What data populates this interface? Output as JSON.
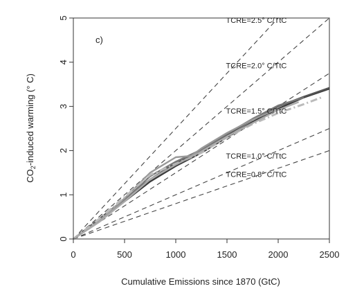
{
  "chart_data": {
    "type": "line",
    "panel_label": "c)",
    "xlabel": "Cumulative Emissions since 1870 (GtC)",
    "ylabel_parts": {
      "pre": "CO",
      "sub": "2",
      "post": "-induced warming (° C)"
    },
    "xlim": [
      0,
      2500
    ],
    "ylim": [
      0,
      5
    ],
    "xticks": [
      0,
      500,
      1000,
      1500,
      2000,
      2500
    ],
    "yticks": [
      0,
      1,
      2,
      3,
      4,
      5
    ],
    "grid": false,
    "reference_lines": [
      {
        "label": "TCRE=2.5° C/TtC",
        "slope": 2.5
      },
      {
        "label": "TCRE=2.0° C/TtC",
        "slope": 2.0
      },
      {
        "label": "TCRE=1.5° C/TtC",
        "slope": 1.5
      },
      {
        "label": "TCRE=1.0° C/TtC",
        "slope": 1.0
      },
      {
        "label": "TCRE=0.8° C/TtC",
        "slope": 0.8
      }
    ],
    "series": [
      {
        "color": "#3a3a3a",
        "style": "solid",
        "x": [
          0,
          250,
          500,
          750,
          1000,
          1250,
          1500,
          1750,
          2000,
          2250,
          2500
        ],
        "y": [
          0,
          0.4,
          0.85,
          1.3,
          1.65,
          1.95,
          2.3,
          2.65,
          2.95,
          3.2,
          3.4
        ]
      },
      {
        "color": "#555555",
        "style": "solid",
        "x": [
          0,
          250,
          500,
          750,
          1000,
          1250,
          1500,
          1750,
          2000,
          2250,
          2500
        ],
        "y": [
          0,
          0.45,
          0.9,
          1.35,
          1.72,
          2.0,
          2.35,
          2.7,
          3.0,
          3.22,
          3.42
        ]
      },
      {
        "color": "#777777",
        "style": "solid",
        "x": [
          0,
          250,
          500,
          750,
          1000,
          1250,
          1500,
          1750,
          2000,
          2250
        ],
        "y": [
          0,
          0.42,
          0.88,
          1.42,
          1.75,
          2.02,
          2.38,
          2.72,
          3.02,
          3.2
        ]
      },
      {
        "color": "#999999",
        "style": "solid",
        "x": [
          0,
          250,
          500,
          750,
          1000,
          1150,
          1250,
          1500,
          1750,
          2000
        ],
        "y": [
          0,
          0.4,
          0.92,
          1.5,
          1.85,
          1.88,
          2.05,
          2.4,
          2.7,
          2.95
        ]
      },
      {
        "color": "#bbbbbb",
        "style": "dashdot",
        "x": [
          0,
          250,
          500,
          750,
          1000,
          1250,
          1500,
          1750,
          2000,
          2250,
          2420
        ],
        "y": [
          0,
          0.45,
          0.95,
          1.45,
          1.7,
          1.95,
          2.3,
          2.6,
          2.85,
          3.05,
          3.2
        ]
      },
      {
        "color": "#aaaaaa",
        "style": "solid",
        "x": [
          0,
          250,
          500,
          750,
          1000,
          1250,
          1500,
          1750,
          2000,
          2200
        ],
        "y": [
          0,
          0.38,
          0.85,
          1.35,
          1.68,
          1.98,
          2.32,
          2.62,
          2.92,
          3.1
        ]
      }
    ]
  }
}
